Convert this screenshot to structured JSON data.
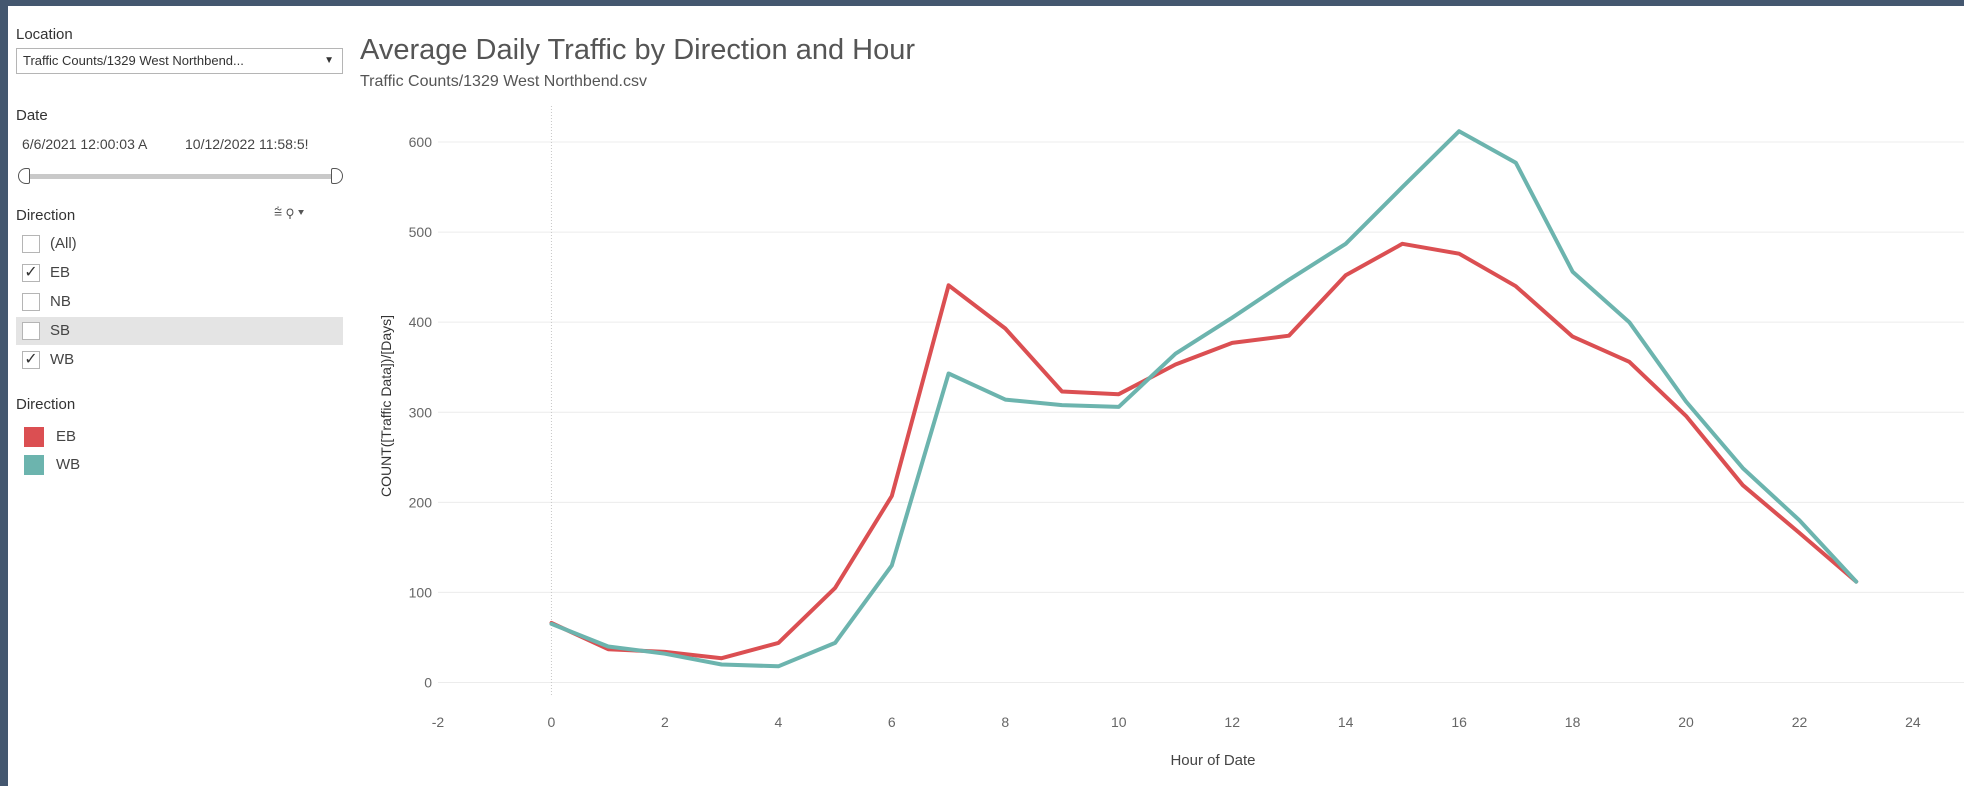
{
  "sidebar": {
    "location_label": "Location",
    "location_value": "Traffic Counts/1329 West Northbend...",
    "date_label": "Date",
    "date_start": "6/6/2021 12:00:03 A",
    "date_end": "10/12/2022 11:58:5!",
    "direction_filter_label": "Direction",
    "direction_options": [
      {
        "label": "(All)",
        "checked": false,
        "highlighted": false
      },
      {
        "label": "EB",
        "checked": true,
        "highlighted": false
      },
      {
        "label": "NB",
        "checked": false,
        "highlighted": false
      },
      {
        "label": "SB",
        "checked": false,
        "highlighted": true
      },
      {
        "label": "WB",
        "checked": true,
        "highlighted": false
      }
    ],
    "legend_label": "Direction",
    "legend_items": [
      {
        "label": "EB",
        "color": "#db4f52"
      },
      {
        "label": "WB",
        "color": "#6cb4ae"
      }
    ]
  },
  "chart_data": {
    "type": "line",
    "title": "Average Daily Traffic by Direction and Hour",
    "subtitle": "Traffic Counts/1329 West Northbend.csv",
    "xlabel": "Hour of Date",
    "ylabel": "COUNT([Traffic Data])/[Days]",
    "xlim": [
      -2,
      24.9
    ],
    "ylim": [
      -15,
      640
    ],
    "x_ticks": [
      -2,
      0,
      2,
      4,
      6,
      8,
      10,
      12,
      14,
      16,
      18,
      20,
      22,
      24
    ],
    "y_ticks": [
      0,
      100,
      200,
      300,
      400,
      500,
      600
    ],
    "grid": "horizontal",
    "reference_line_x": 0,
    "x": [
      0,
      1,
      2,
      3,
      4,
      5,
      6,
      7,
      8,
      9,
      10,
      11,
      12,
      13,
      14,
      15,
      16,
      17,
      18,
      19,
      20,
      21,
      22,
      23
    ],
    "series": [
      {
        "name": "EB",
        "color": "#db4f52",
        "values": [
          66,
          37,
          34,
          27,
          44,
          105,
          207,
          441,
          393,
          323,
          320,
          353,
          377,
          385,
          452,
          487,
          476,
          440,
          384,
          356,
          296,
          219,
          166,
          112
        ]
      },
      {
        "name": "WB",
        "color": "#6cb4ae",
        "values": [
          65,
          40,
          32,
          20,
          18,
          44,
          130,
          343,
          314,
          308,
          306,
          365,
          405,
          447,
          487,
          550,
          612,
          577,
          456,
          400,
          312,
          238,
          180,
          112
        ]
      }
    ]
  }
}
